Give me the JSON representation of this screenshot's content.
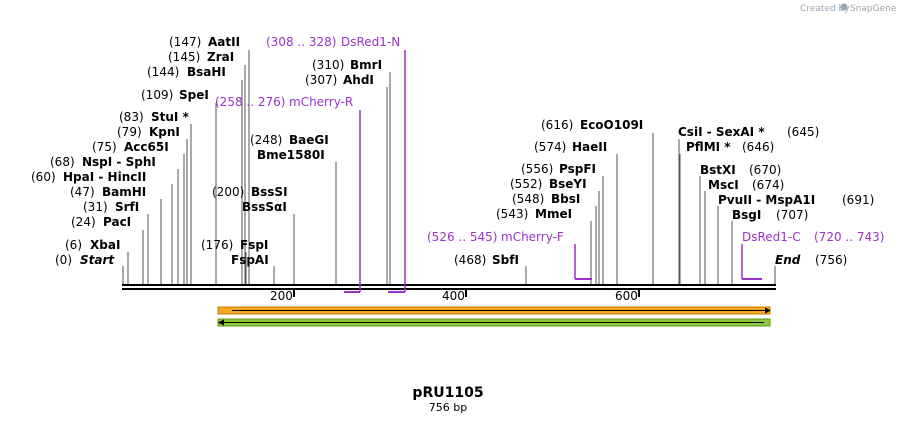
{
  "brand": {
    "created_by": "Created by",
    "app_name": "SnapGene"
  },
  "plasmid": {
    "name": "pRU1105",
    "size_label": "756 bp"
  },
  "ruler": {
    "ticks": [
      "200",
      "400",
      "600"
    ]
  },
  "sites_left": [
    {
      "pos": "(0)",
      "name": "Start",
      "italic": true
    },
    {
      "pos": "(6)",
      "name": "XbaI"
    },
    {
      "pos": "(24)",
      "name": "PacI"
    },
    {
      "pos": "(31)",
      "name": "SrfI"
    },
    {
      "pos": "(47)",
      "name": "BamHI"
    },
    {
      "pos": "(60)",
      "name": "HpaI",
      "name2": " - HincII"
    },
    {
      "pos": "(68)",
      "name": "NspI",
      "name2": " - SphI"
    },
    {
      "pos": "(75)",
      "name": "Acc65I"
    },
    {
      "pos": "(79)",
      "name": "KpnI"
    },
    {
      "pos": "(83)",
      "name": "StuI *"
    },
    {
      "pos": "(109)",
      "name": "SpeI"
    },
    {
      "pos": "(144)",
      "name": "BsaHI"
    },
    {
      "pos": "(145)",
      "name": "ZraI"
    },
    {
      "pos": "(147)",
      "name": "AatII"
    },
    {
      "pos": "(176)",
      "name": "FspI"
    },
    {
      "pos": "",
      "name": "FspAI"
    },
    {
      "pos": "(200)",
      "name": "BssSI"
    },
    {
      "pos": "",
      "name": "BssSαI"
    },
    {
      "pos": "(248)",
      "name": "BaeGI"
    },
    {
      "pos": "",
      "name": "Bme1580I"
    },
    {
      "pos": "(307)",
      "name": "AhdI"
    },
    {
      "pos": "(310)",
      "name": "BmrI"
    }
  ],
  "sites_right": [
    {
      "pos": "(468)",
      "name": "SbfI"
    },
    {
      "pos": "(543)",
      "name": "MmeI"
    },
    {
      "pos": "(548)",
      "name": "BbsI"
    },
    {
      "pos": "(552)",
      "name": "BseYI"
    },
    {
      "pos": "(556)",
      "name": "PspFI"
    },
    {
      "pos": "(574)",
      "name": "HaeII"
    },
    {
      "pos": "(616)",
      "name": "EcoO109I"
    },
    {
      "pos": "(645)",
      "name": "CsiI",
      "name2": " - SexAI *"
    },
    {
      "pos": "(646)",
      "name": "PflMI *"
    },
    {
      "pos": "(670)",
      "name": "BstXI"
    },
    {
      "pos": "(674)",
      "name": "MscI"
    },
    {
      "pos": "(691)",
      "name": "PvuII",
      "name2": " - MspA1I"
    },
    {
      "pos": "(707)",
      "name": "BsgI"
    },
    {
      "pos": "(756)",
      "name": "End",
      "italic": true
    }
  ],
  "primers": [
    {
      "range": "(308 .. 328)",
      "name": "DsRed1-N"
    },
    {
      "range": "(258 .. 276)",
      "name": "mCherry-R"
    },
    {
      "range": "(526 .. 545)",
      "name": "mCherry-F"
    },
    {
      "range": "(720 .. 743)",
      "name": "DsRed1-C"
    }
  ],
  "colors": {
    "primer": "#9a33cc",
    "feature_orange": "#f5a623",
    "feature_green": "#8ccc3c",
    "line": "#000000",
    "tick": "#666666"
  }
}
